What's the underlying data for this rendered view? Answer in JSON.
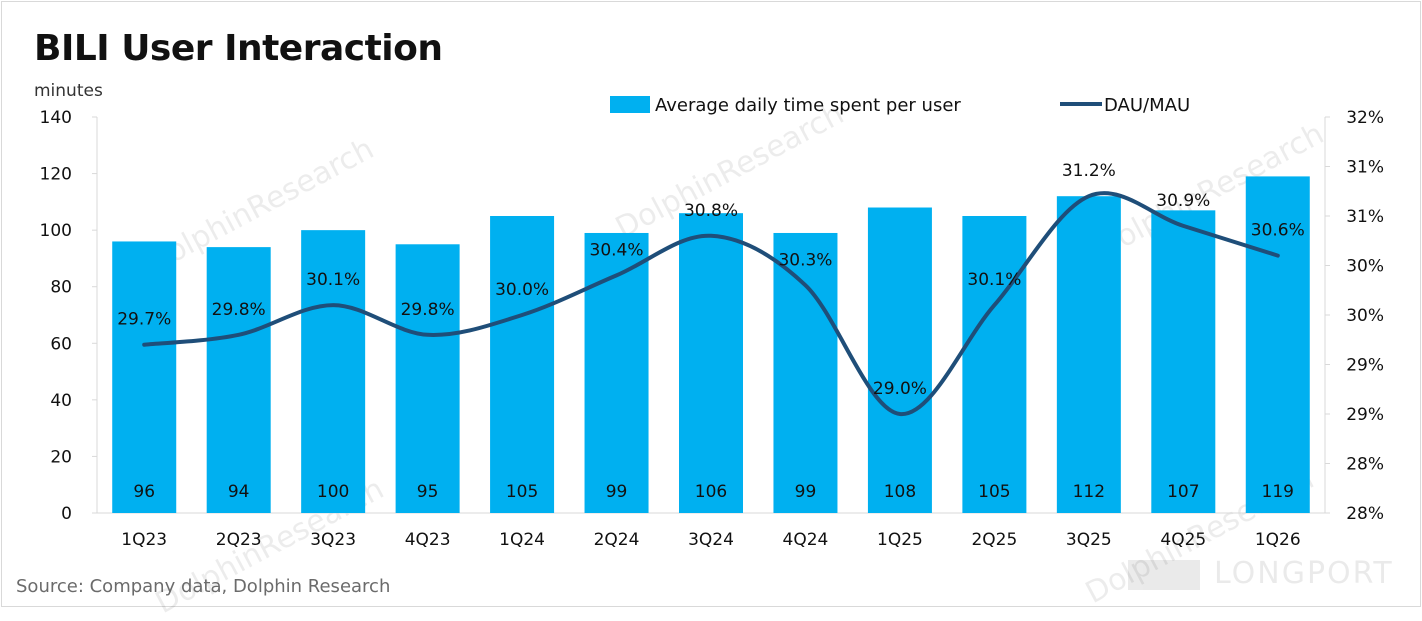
{
  "title": "BILI User Interaction",
  "source": "Source: Company data, Dolphin Research",
  "watermarks": {
    "dolphin": "DolphinResearch",
    "longport": "LONGPORT"
  },
  "colors": {
    "bar": "#00b0f0",
    "line": "#1f4e79",
    "axis": "#d9d9d9",
    "text": "#111111"
  },
  "chart_data": {
    "type": "bar",
    "categories": [
      "1Q23",
      "2Q23",
      "3Q23",
      "4Q23",
      "1Q24",
      "2Q24",
      "3Q24",
      "4Q24",
      "1Q25",
      "2Q25",
      "3Q25",
      "4Q25",
      "1Q26"
    ],
    "series": [
      {
        "name": "Average daily time spent per user",
        "type": "bar",
        "axis": "left",
        "values": [
          96,
          94,
          100,
          95,
          105,
          99,
          106,
          99,
          108,
          105,
          112,
          107,
          119
        ],
        "labels": [
          "96",
          "94",
          "100",
          "95",
          "105",
          "99",
          "106",
          "99",
          "108",
          "105",
          "112",
          "107",
          "119"
        ]
      },
      {
        "name": "DAU/MAU",
        "type": "line",
        "axis": "right",
        "values": [
          29.7,
          29.8,
          30.1,
          29.8,
          30.0,
          30.4,
          30.8,
          30.3,
          29.0,
          30.1,
          31.2,
          30.9,
          30.6
        ],
        "labels": [
          "29.7%",
          "29.8%",
          "30.1%",
          "29.8%",
          "30.0%",
          "30.4%",
          "30.8%",
          "30.3%",
          "29.0%",
          "30.1%",
          "31.2%",
          "30.9%",
          "30.6%"
        ]
      }
    ],
    "ylabel": "minutes",
    "ylim": [
      0,
      140
    ],
    "yticks": [
      "0",
      "20",
      "40",
      "60",
      "80",
      "100",
      "120",
      "140"
    ],
    "y2lim": [
      28.0,
      32.0
    ],
    "y2ticks": [
      "28%",
      "28%",
      "29%",
      "29%",
      "30%",
      "30%",
      "31%",
      "31%",
      "32%"
    ],
    "legend": "top",
    "grid": false
  }
}
